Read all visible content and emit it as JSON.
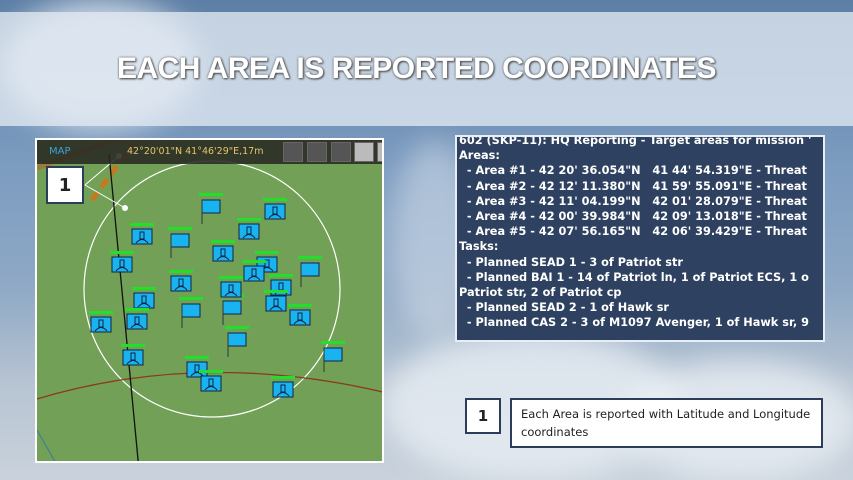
{
  "slide": {
    "title": "EACH AREA IS REPORTED COORDINATES"
  },
  "map": {
    "label": "MAP",
    "coordinates": "42°20'01\"N 41°46'29\"E,17m",
    "toolbar_icons": [
      "layers-icon",
      "route-icon",
      "search-icon",
      "radar-icon",
      "radar-icon"
    ],
    "marker_number": "1",
    "unit_color": "#19b4ef",
    "health_color": "#22e02a"
  },
  "report": {
    "lines": [
      "602 (SKP-11): HQ Reporting - Target areas for mission '",
      "Areas:",
      "  - Area #1 - 42 20' 36.054\"N   41 44' 54.319\"E - Threat",
      "  - Area #2 - 42 12' 11.380\"N   41 59' 55.091\"E - Threat",
      "  - Area #3 - 42 11' 04.199\"N   42 01' 28.079\"E - Threat",
      "  - Area #4 - 42 00' 39.984\"N   42 09' 13.018\"E - Threat",
      "  - Area #5 - 42 07' 56.165\"N   42 06' 39.429\"E - Threat",
      "",
      "Tasks:",
      "  - Planned SEAD 1 - 3 of Patriot str",
      "  - Planned BAI 1 - 14 of Patriot ln, 1 of Patriot ECS, 1 o",
      "Patriot str, 2 of Patriot cp",
      "  - Planned SEAD 2 - 1 of Hawk sr",
      "  - Planned CAS 2 - 3 of M1097 Avenger, 1 of Hawk sr, 9"
    ]
  },
  "callout": {
    "number": "1",
    "text": "Each Area is reported with Latitude and Longitude coordinates"
  }
}
